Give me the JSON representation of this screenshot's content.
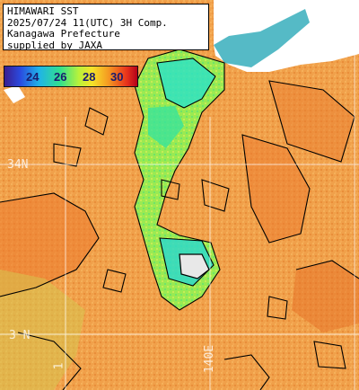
{
  "caption": {
    "line1": "HIMAWARI SST",
    "line2": "2025/07/24 11(UTC) 3H Comp.",
    "line3": "Kanagawa Prefecture",
    "line4": "supplied by JAXA"
  },
  "legend": {
    "ticks": [
      "24",
      "26",
      "28",
      "30"
    ]
  },
  "grid": {
    "lat_label": "34N",
    "lat_label_lower": "3 N",
    "lon_label_left": "1",
    "lon_label_right": "140E"
  },
  "colors": {
    "land": "#ffffff",
    "warm_orange": "#f1a14b",
    "hot_orange": "#ec7a2d",
    "cool_green": "#79ec4d",
    "cool_cyan": "#2fe3c2",
    "contour": "#000000",
    "grid_line": "#ffffff"
  }
}
